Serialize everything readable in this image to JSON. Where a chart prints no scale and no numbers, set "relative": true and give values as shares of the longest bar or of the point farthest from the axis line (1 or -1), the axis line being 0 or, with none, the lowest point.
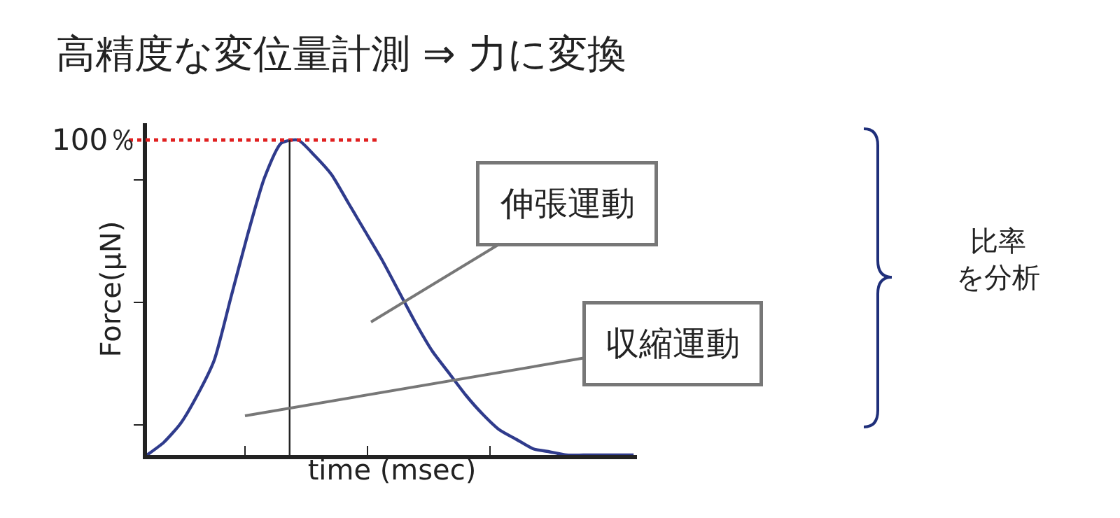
{
  "chart_data": {
    "type": "line",
    "relative": true,
    "title": "高精度な変位量計測 ⇒ 力に変換",
    "xlabel": "time (msec)",
    "ylabel": "Force(μN)",
    "categories": [
      null,
      null,
      null,
      null,
      null,
      null,
      null,
      null,
      null,
      null,
      null,
      null,
      null,
      null,
      null,
      null,
      null,
      null,
      null,
      null,
      null,
      null,
      null,
      null,
      null,
      null,
      null,
      null,
      null,
      null
    ],
    "series": [
      {
        "color": "#2f3b8c",
        "values": [
          0,
          0.04,
          0.1,
          0.19,
          0.3,
          0.5,
          0.7,
          0.88,
          0.99,
          1,
          0.95,
          0.89,
          0.8,
          0.71,
          0.62,
          0.52,
          0.42,
          0.33,
          0.26,
          0.19,
          0.13,
          0.08,
          0.05,
          0.02,
          0.01,
          0,
          0,
          0,
          0,
          0
        ]
      }
    ],
    "ref_lines": [
      {
        "axis": "y",
        "value": 1,
        "label": "100％",
        "color": "#e02020",
        "line_style": "dotted"
      }
    ],
    "annotations": [
      "伸張運動",
      "収縮運動",
      "比率を分析"
    ],
    "marker": "none",
    "line_style": "solid",
    "tick_labels": false
  }
}
